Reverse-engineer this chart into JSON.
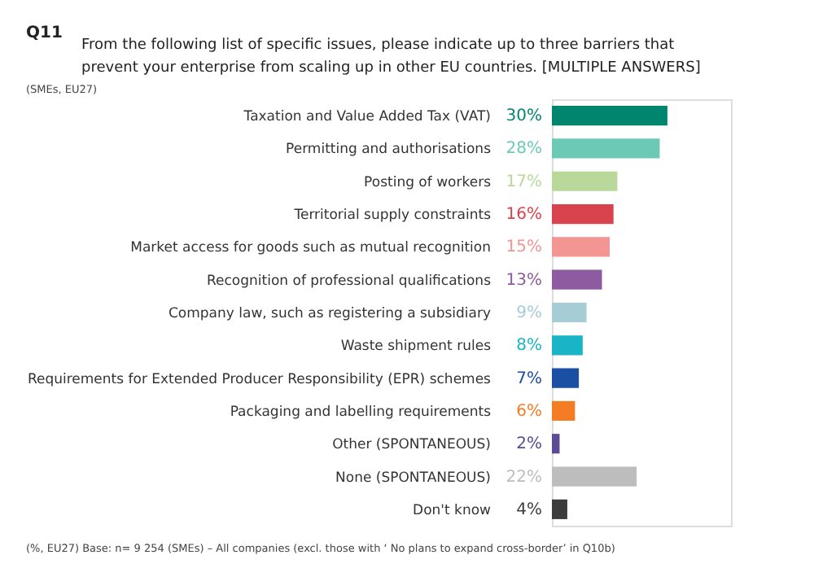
{
  "chart_data": {
    "type": "bar",
    "orientation": "horizontal",
    "title": "Q11 From the following list of specific issues, please indicate up to three barriers that prevent your enterprise from scaling up in other EU countries. [MULTIPLE ANSWERS]",
    "subtitle": "(SMEs, EU27)",
    "annotations": [
      "(%, EU27) Base: n= 9 254 (SMEs) – All companies (excl. those with ‘ No plans to expand cross-border’ in Q10b)"
    ],
    "categories": [
      "Taxation and Value Added Tax (VAT)",
      "Permitting and authorisations",
      "Posting of workers",
      "Territorial supply constraints",
      "Market access for goods such as mutual recognition",
      "Recognition of professional qualifications",
      "Company law, such as registering a subsidiary",
      "Waste shipment rules",
      "Requirements for Extended Producer Responsibility (EPR) schemes",
      "Packaging and labelling requirements",
      "Other (SPONTANEOUS)",
      "None (SPONTANEOUS)",
      "Don't know"
    ],
    "values": [
      30,
      28,
      17,
      16,
      15,
      13,
      9,
      8,
      7,
      6,
      2,
      22,
      4
    ],
    "value_labels": [
      "30%",
      "28%",
      "17%",
      "16%",
      "15%",
      "13%",
      "9%",
      "8%",
      "7%",
      "6%",
      "2%",
      "22%",
      "4%"
    ],
    "colors": [
      "#00856f",
      "#6cc9b6",
      "#b9d99a",
      "#d9434e",
      "#f39593",
      "#8e5aa0",
      "#a6cdd6",
      "#19b5c6",
      "#1a4fa3",
      "#f47c24",
      "#5b4b94",
      "#bdbdbd",
      "#3c3c3c"
    ],
    "grid": false
  }
}
